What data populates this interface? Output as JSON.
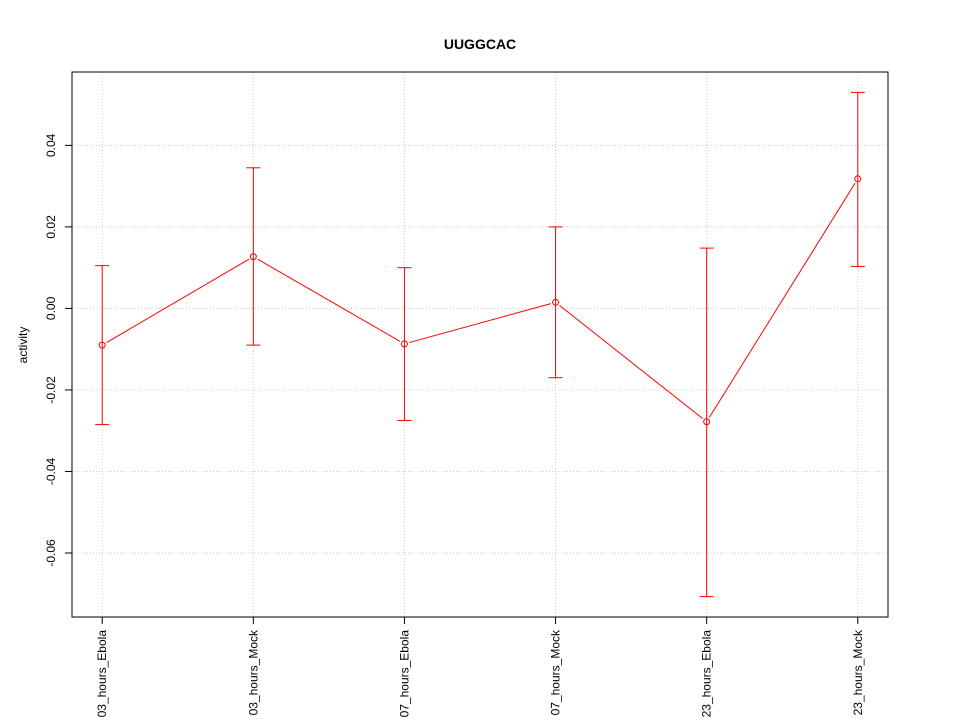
{
  "chart_data": {
    "type": "line",
    "title": "UUGGCAC",
    "xlabel": "",
    "ylabel": "activity",
    "categories": [
      "03_hours_Ebola",
      "03_hours_Mock",
      "07_hours_Ebola",
      "07_hours_Mock",
      "23_hours_Ebola",
      "23_hours_Mock"
    ],
    "series": [
      {
        "values": [
          -0.009,
          0.0127,
          -0.0087,
          0.0015,
          -0.0278,
          0.0318
        ],
        "error_lower": [
          -0.0285,
          -0.009,
          -0.0275,
          -0.017,
          -0.0707,
          0.0103
        ],
        "error_upper": [
          0.0105,
          0.0345,
          0.01,
          0.02,
          0.0148,
          0.053
        ],
        "color": "#ff0000"
      }
    ],
    "ylim": [
      -0.0757,
      0.058
    ],
    "yticks": [
      -0.06,
      -0.04,
      -0.02,
      0.0,
      0.02,
      0.04
    ],
    "ytick_labels": [
      "-0.06",
      "-0.04",
      "-0.02",
      "0.00",
      "0.02",
      "0.04"
    ],
    "grid": true,
    "grid_color": "#cccccc",
    "legend": "none"
  }
}
